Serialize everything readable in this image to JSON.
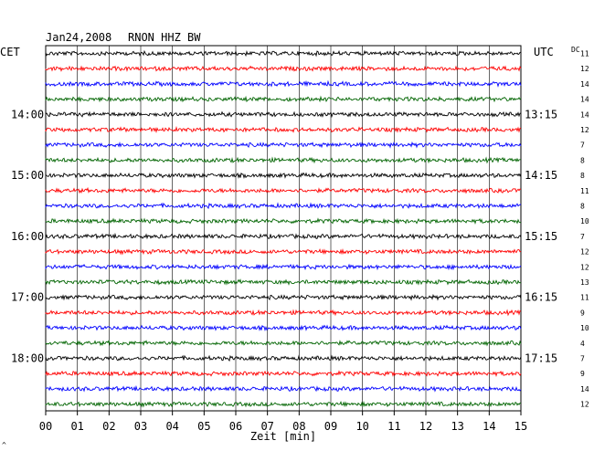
{
  "header": {
    "date": "Jan24,2008",
    "station": "RNON HHZ BW",
    "left_tz": "CET",
    "right_tz": "UTC",
    "dc_label": "DC"
  },
  "footer": {
    "xlabel": "Zeit [min]",
    "corner_mark": "^"
  },
  "chart_data": {
    "type": "line",
    "xlabel": "Zeit [min]",
    "xlim": [
      0,
      15
    ],
    "x_ticks": [
      "00",
      "01",
      "02",
      "03",
      "04",
      "05",
      "06",
      "07",
      "08",
      "09",
      "10",
      "11",
      "12",
      "13",
      "14",
      "15"
    ],
    "trace_colors": [
      "#000000",
      "#ff0000",
      "#0000ff",
      "#006400"
    ],
    "traces_count": 24,
    "left_time_labels": [
      {
        "trace": 4,
        "label": "14:00"
      },
      {
        "trace": 8,
        "label": "15:00"
      },
      {
        "trace": 12,
        "label": "16:00"
      },
      {
        "trace": 16,
        "label": "17:00"
      },
      {
        "trace": 20,
        "label": "18:00"
      }
    ],
    "right_time_labels": [
      {
        "trace": 4,
        "label": "13:15"
      },
      {
        "trace": 8,
        "label": "14:15"
      },
      {
        "trace": 12,
        "label": "15:15"
      },
      {
        "trace": 16,
        "label": "16:15"
      },
      {
        "trace": 20,
        "label": "17:15"
      }
    ],
    "dc_values": [
      "11",
      "12",
      "14",
      "14",
      "14",
      "12",
      "7",
      "8",
      "8",
      "11",
      "8",
      "10",
      "7",
      "12",
      "12",
      "13",
      "11",
      "9",
      "10",
      "4",
      "7",
      "9",
      "14",
      "12"
    ],
    "grid": true
  }
}
